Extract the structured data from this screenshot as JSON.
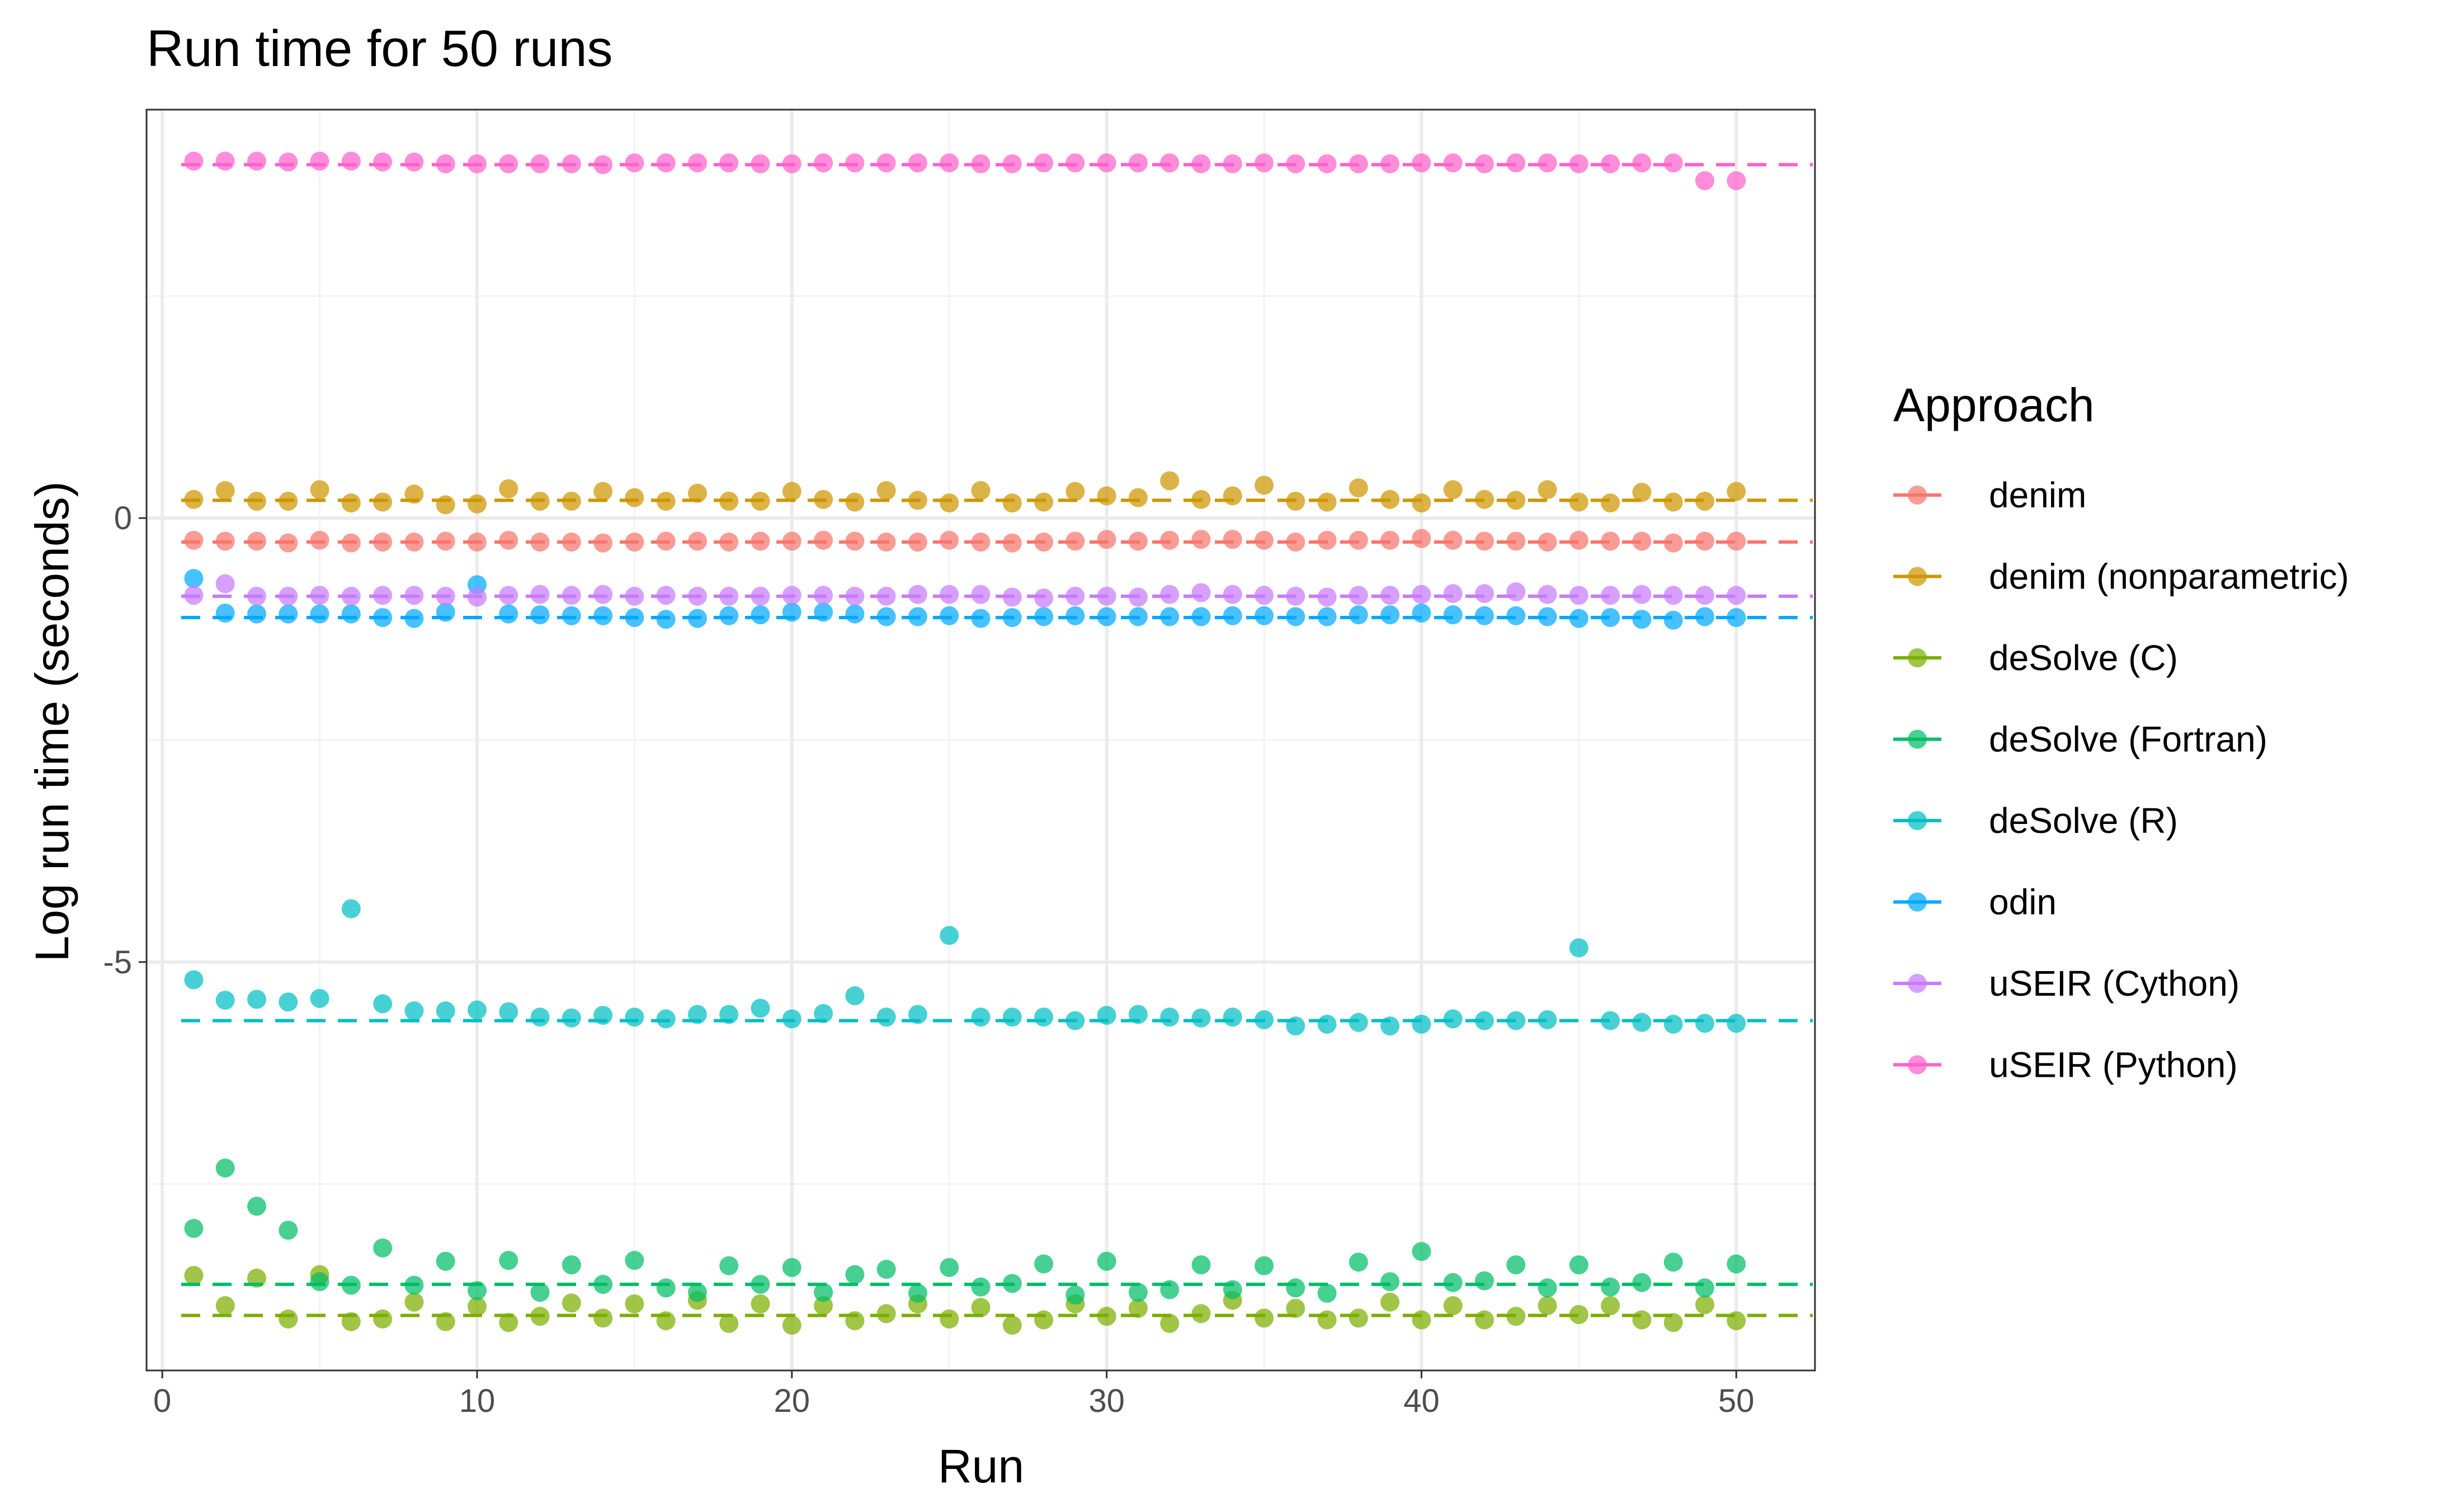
{
  "chart_data": {
    "type": "scatter",
    "title": "Run time for 50 runs",
    "xlabel": "Run",
    "ylabel": "Log run time (seconds)",
    "xlim": [
      -0.5,
      52.5
    ],
    "ylim": [
      -9.6,
      4.6
    ],
    "x_ticks": [
      0,
      10,
      20,
      30,
      40,
      50
    ],
    "y_ticks": [
      0,
      -5
    ],
    "x_tick_labels": [
      "0",
      "10",
      "20",
      "30",
      "40",
      "50"
    ],
    "y_tick_labels": [
      "0",
      "-5"
    ],
    "grid": true,
    "legend": {
      "title": "Approach",
      "position": "right"
    },
    "series": [
      {
        "name": "denim",
        "color": "#F8766D",
        "reference_y": -0.27,
        "values": [
          -0.25,
          -0.26,
          -0.26,
          -0.28,
          -0.25,
          -0.28,
          -0.27,
          -0.27,
          -0.26,
          -0.27,
          -0.25,
          -0.27,
          -0.27,
          -0.28,
          -0.27,
          -0.26,
          -0.26,
          -0.27,
          -0.26,
          -0.26,
          -0.25,
          -0.26,
          -0.27,
          -0.27,
          -0.25,
          -0.27,
          -0.28,
          -0.27,
          -0.26,
          -0.24,
          -0.26,
          -0.25,
          -0.24,
          -0.24,
          -0.25,
          -0.27,
          -0.25,
          -0.25,
          -0.25,
          -0.23,
          -0.25,
          -0.26,
          -0.26,
          -0.27,
          -0.25,
          -0.26,
          -0.26,
          -0.28,
          -0.26,
          -0.26
        ]
      },
      {
        "name": "denim (nonparametric)",
        "color": "#CD9600",
        "reference_y": 0.2,
        "values": [
          0.21,
          0.31,
          0.19,
          0.19,
          0.32,
          0.17,
          0.18,
          0.27,
          0.15,
          0.16,
          0.33,
          0.19,
          0.19,
          0.3,
          0.23,
          0.19,
          0.28,
          0.19,
          0.19,
          0.3,
          0.21,
          0.18,
          0.31,
          0.2,
          0.17,
          0.31,
          0.17,
          0.18,
          0.3,
          0.25,
          0.23,
          0.42,
          0.21,
          0.25,
          0.37,
          0.19,
          0.18,
          0.34,
          0.21,
          0.17,
          0.32,
          0.21,
          0.2,
          0.32,
          0.18,
          0.17,
          0.29,
          0.18,
          0.19,
          0.3
        ]
      },
      {
        "name": "deSolve (C)",
        "color": "#7CAE00",
        "reference_y": -8.98,
        "values": [
          -8.53,
          -8.87,
          -8.56,
          -9.02,
          -8.52,
          -9.05,
          -9.02,
          -8.83,
          -9.05,
          -8.88,
          -9.06,
          -8.99,
          -8.84,
          -9.01,
          -8.85,
          -9.04,
          -8.81,
          -9.07,
          -8.85,
          -9.09,
          -8.87,
          -9.04,
          -8.96,
          -8.85,
          -9.02,
          -8.89,
          -9.09,
          -9.03,
          -8.85,
          -8.99,
          -8.9,
          -9.07,
          -8.96,
          -8.81,
          -9.01,
          -8.9,
          -9.03,
          -9.01,
          -8.83,
          -9.03,
          -8.87,
          -9.03,
          -8.99,
          -8.87,
          -8.97,
          -8.87,
          -9.03,
          -9.06,
          -8.86,
          -9.04
        ]
      },
      {
        "name": "deSolve (Fortran)",
        "color": "#00BE67",
        "reference_y": -8.63,
        "values": [
          -8.0,
          -7.32,
          -7.75,
          -8.02,
          -8.6,
          -8.64,
          -8.22,
          -8.64,
          -8.37,
          -8.7,
          -8.36,
          -8.72,
          -8.41,
          -8.63,
          -8.36,
          -8.67,
          -8.72,
          -8.42,
          -8.63,
          -8.44,
          -8.72,
          -8.52,
          -8.46,
          -8.73,
          -8.44,
          -8.66,
          -8.62,
          -8.4,
          -8.75,
          -8.37,
          -8.72,
          -8.69,
          -8.41,
          -8.69,
          -8.42,
          -8.67,
          -8.73,
          -8.38,
          -8.6,
          -8.26,
          -8.61,
          -8.59,
          -8.41,
          -8.67,
          -8.41,
          -8.66,
          -8.61,
          -8.38,
          -8.67,
          -8.4
        ]
      },
      {
        "name": "deSolve (R)",
        "color": "#00BFC4",
        "reference_y": -5.66,
        "values": [
          -5.2,
          -5.43,
          -5.42,
          -5.45,
          -5.41,
          -4.4,
          -5.47,
          -5.55,
          -5.55,
          -5.54,
          -5.56,
          -5.62,
          -5.63,
          -5.6,
          -5.62,
          -5.64,
          -5.59,
          -5.59,
          -5.52,
          -5.64,
          -5.58,
          -5.38,
          -5.62,
          -5.59,
          -4.7,
          -5.62,
          -5.62,
          -5.62,
          -5.66,
          -5.6,
          -5.59,
          -5.62,
          -5.63,
          -5.62,
          -5.65,
          -5.72,
          -5.7,
          -5.68,
          -5.72,
          -5.7,
          -5.64,
          -5.66,
          -5.66,
          -5.65,
          -4.84,
          -5.66,
          -5.68,
          -5.7,
          -5.69,
          -5.69
        ]
      },
      {
        "name": "odin",
        "color": "#00A9FF",
        "reference_y": -1.12,
        "values": [
          -0.68,
          -1.07,
          -1.08,
          -1.08,
          -1.08,
          -1.08,
          -1.12,
          -1.13,
          -1.06,
          -0.75,
          -1.08,
          -1.09,
          -1.1,
          -1.1,
          -1.12,
          -1.14,
          -1.13,
          -1.1,
          -1.09,
          -1.06,
          -1.06,
          -1.08,
          -1.11,
          -1.11,
          -1.1,
          -1.13,
          -1.12,
          -1.11,
          -1.1,
          -1.11,
          -1.11,
          -1.11,
          -1.11,
          -1.1,
          -1.1,
          -1.11,
          -1.11,
          -1.09,
          -1.09,
          -1.07,
          -1.09,
          -1.1,
          -1.1,
          -1.11,
          -1.13,
          -1.12,
          -1.14,
          -1.15,
          -1.11,
          -1.12
        ]
      },
      {
        "name": "uSEIR (Cython)",
        "color": "#C77CFF",
        "reference_y": -0.88,
        "values": [
          -0.87,
          -0.74,
          -0.88,
          -0.88,
          -0.87,
          -0.88,
          -0.87,
          -0.87,
          -0.88,
          -0.89,
          -0.87,
          -0.86,
          -0.87,
          -0.86,
          -0.88,
          -0.87,
          -0.88,
          -0.88,
          -0.88,
          -0.87,
          -0.87,
          -0.88,
          -0.88,
          -0.86,
          -0.86,
          -0.86,
          -0.89,
          -0.9,
          -0.88,
          -0.88,
          -0.89,
          -0.86,
          -0.84,
          -0.86,
          -0.87,
          -0.88,
          -0.89,
          -0.87,
          -0.87,
          -0.86,
          -0.85,
          -0.85,
          -0.83,
          -0.86,
          -0.87,
          -0.87,
          -0.86,
          -0.87,
          -0.87,
          -0.87
        ]
      },
      {
        "name": "uSEIR (Python)",
        "color": "#FF61CC",
        "reference_y": 3.98,
        "values": [
          4.02,
          4.02,
          4.02,
          4.01,
          4.02,
          4.02,
          4.01,
          4.01,
          3.99,
          3.99,
          3.99,
          3.99,
          3.99,
          3.98,
          4.0,
          4.0,
          4.0,
          4.0,
          3.99,
          3.99,
          4.0,
          4.0,
          4.0,
          4.0,
          4.0,
          3.99,
          3.99,
          4.0,
          4.0,
          4.0,
          4.0,
          4.0,
          3.99,
          3.99,
          4.0,
          3.99,
          3.99,
          3.99,
          3.99,
          4.0,
          4.0,
          3.99,
          4.0,
          4.0,
          3.99,
          3.99,
          4.0,
          4.0,
          3.8,
          3.8
        ]
      }
    ]
  }
}
